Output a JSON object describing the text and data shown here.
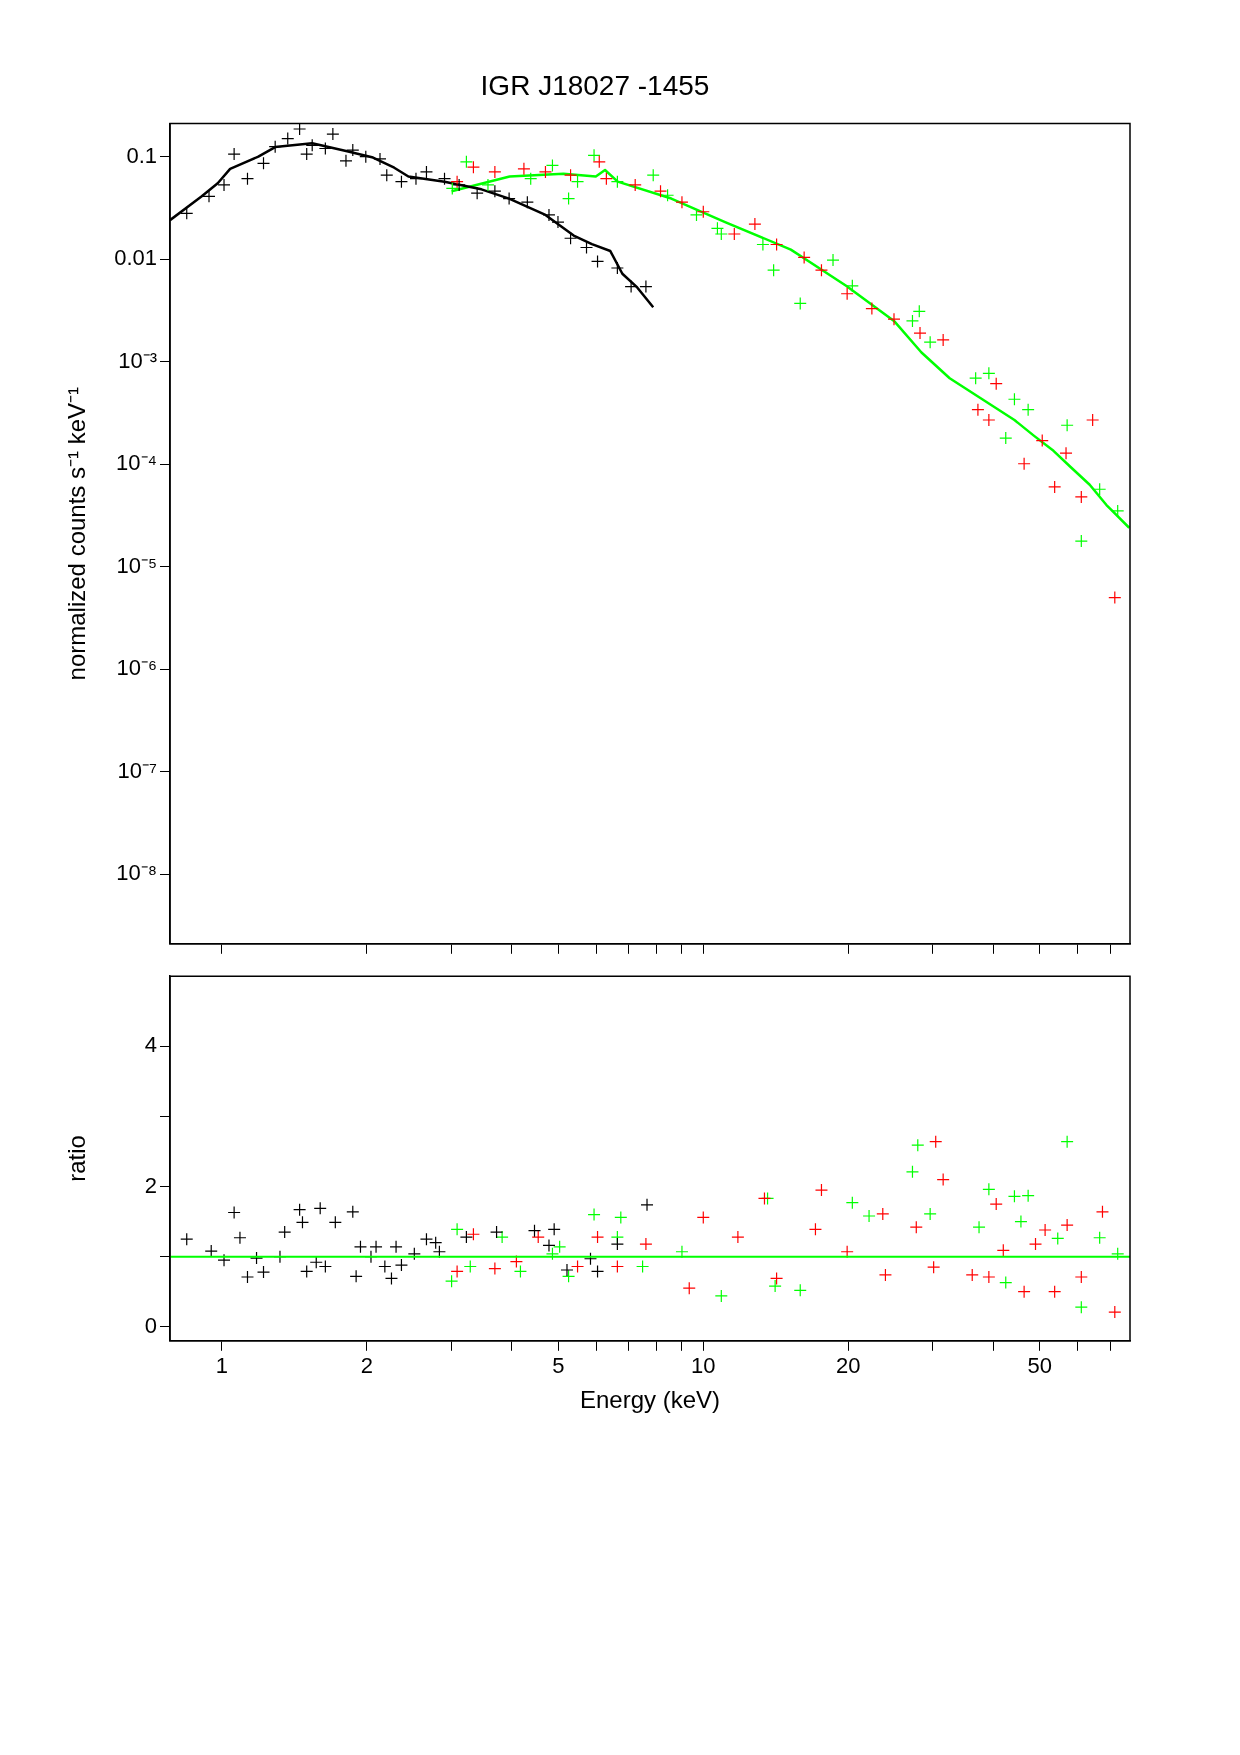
{
  "chart_data": [
    {
      "type": "scatter",
      "title": "IGR J18027 -1455",
      "ylabel": "normalized counts s⁻¹ keV⁻¹",
      "log": "xy",
      "marker": "cross",
      "tick_labels": "y",
      "xlim": [
        0.78,
        77
      ],
      "ylim": [
        2.1e-09,
        0.21
      ],
      "xticks": [
        {
          "value": 1,
          "label": null
        },
        {
          "value": 2,
          "label": null
        },
        {
          "value": 3,
          "label": null
        },
        {
          "value": 4,
          "label": null
        },
        {
          "value": 5,
          "label": null
        },
        {
          "value": 6,
          "label": null
        },
        {
          "value": 7,
          "label": null
        },
        {
          "value": 8,
          "label": null
        },
        {
          "value": 9,
          "label": null
        },
        {
          "value": 10,
          "label": null
        },
        {
          "value": 20,
          "label": null
        },
        {
          "value": 30,
          "label": null
        },
        {
          "value": 40,
          "label": null
        },
        {
          "value": 50,
          "label": null
        },
        {
          "value": 60,
          "label": null
        },
        {
          "value": 70,
          "label": null
        }
      ],
      "yticks": [
        {
          "value": 0.1,
          "label": "0.1"
        },
        {
          "value": 0.01,
          "label": "0.01"
        },
        {
          "value": 0.001,
          "label": "10⁻³"
        },
        {
          "value": 0.0001,
          "label": "10⁻⁴"
        },
        {
          "value": 1e-05,
          "label": "10⁻⁵"
        },
        {
          "value": 1e-06,
          "label": "10⁻⁶"
        },
        {
          "value": 1e-07,
          "label": "10⁻⁷"
        },
        {
          "value": 1e-08,
          "label": "10⁻⁸"
        }
      ],
      "series": [
        {
          "color": "#000000",
          "x": [
            0.845,
            0.94,
            1.01,
            1.06,
            1.13,
            1.22,
            1.29,
            1.37,
            1.45,
            1.5,
            1.54,
            1.64,
            1.7,
            1.81,
            1.87,
            1.99,
            2.13,
            2.2,
            2.36,
            2.53,
            2.66,
            2.9,
            3.11,
            3.39,
            3.69,
            3.95,
            4.31,
            4.78,
            4.99,
            5.3,
            5.72,
            6.03,
            6.63,
            7.08,
            7.6
          ],
          "values": [
            0.028,
            0.041,
            0.053,
            0.106,
            0.061,
            0.086,
            0.125,
            0.15,
            0.186,
            0.106,
            0.129,
            0.12,
            0.166,
            0.091,
            0.116,
            0.1,
            0.095,
            0.066,
            0.057,
            0.061,
            0.071,
            0.061,
            0.053,
            0.044,
            0.046,
            0.039,
            0.036,
            0.027,
            0.023,
            0.016,
            0.013,
            0.0095,
            0.0082,
            0.0054,
            0.0054
          ]
        },
        {
          "color": "#ff0000",
          "x": [
            3.08,
            3.33,
            3.69,
            4.24,
            4.7,
            5.3,
            6.08,
            6.29,
            7.22,
            8.15,
            9.03,
            10,
            11.6,
            12.8,
            14.2,
            16.2,
            17.6,
            19.9,
            22.4,
            24.9,
            28.2,
            31.5,
            37.2,
            39.2,
            40.6,
            46.4,
            50.6,
            53.7,
            56.7,
            61,
            64.4,
            71.6
          ],
          "values": [
            0.057,
            0.079,
            0.071,
            0.076,
            0.071,
            0.066,
            0.089,
            0.061,
            0.053,
            0.046,
            0.036,
            0.029,
            0.0176,
            0.022,
            0.0139,
            0.0104,
            0.0078,
            0.0046,
            0.0033,
            0.0026,
            0.0019,
            0.00163,
            0.00034,
            0.00027,
            0.00061,
            0.000101,
            0.00017,
            6e-05,
            0.000128,
            4.8e-05,
            0.00027,
            5e-06
          ]
        },
        {
          "color": "#00ff00",
          "x": [
            3.01,
            3.22,
            3.57,
            4.38,
            4.86,
            5.25,
            5.48,
            5.93,
            6.63,
            7.87,
            8.43,
            9.68,
            10.7,
            10.9,
            13.3,
            14,
            15.9,
            18.6,
            20.4,
            27.2,
            28.1,
            29.6,
            36.8,
            39.2,
            42.5,
            44.3,
            47.3,
            57,
            61,
            66.6,
            72.6
          ],
          "values": [
            0.049,
            0.089,
            0.053,
            0.061,
            0.082,
            0.039,
            0.057,
            0.103,
            0.057,
            0.066,
            0.042,
            0.027,
            0.02,
            0.0176,
            0.0139,
            0.0078,
            0.0037,
            0.0098,
            0.0055,
            0.0025,
            0.0031,
            0.00155,
            0.00069,
            0.00077,
            0.00018,
            0.00043,
            0.00034,
            0.00024,
            1.78e-05,
            5.7e-05,
            3.5e-05
          ]
        },
        {
          "type": "line",
          "marker": "none",
          "color": "#000000",
          "x": [
            0.78,
            0.908,
            0.98,
            1.04,
            1.19,
            1.29,
            1.54,
            1.82,
            2.06,
            2.28,
            2.44,
            2.9,
            3.46,
            3.95,
            4.7,
            5.38,
            5.87,
            6.41,
            6.79,
            7.29,
            7.87
          ],
          "values": [
            0.024,
            0.041,
            0.055,
            0.076,
            0.1,
            0.124,
            0.135,
            0.113,
            0.098,
            0.078,
            0.064,
            0.057,
            0.048,
            0.039,
            0.027,
            0.017,
            0.014,
            0.012,
            0.0072,
            0.0053,
            0.0034
          ]
        },
        {
          "type": "line",
          "marker": "none",
          "color": "#00ff00",
          "x": [
            3,
            3.96,
            5.12,
            5.98,
            6.25,
            6.64,
            8.58,
            11.1,
            15.2,
            19.8,
            24.9,
            28.4,
            32.5,
            37.7,
            44.3,
            48.6,
            53.4,
            57.8,
            63.5,
            68.8,
            76.7
          ],
          "values": [
            0.046,
            0.064,
            0.068,
            0.064,
            0.074,
            0.057,
            0.039,
            0.023,
            0.0124,
            0.0055,
            0.0025,
            0.00123,
            0.00069,
            0.00044,
            0.00027,
            0.00019,
            0.000135,
            9.5e-05,
            6.3e-05,
            4e-05,
            2.4e-05
          ]
        }
      ]
    },
    {
      "type": "scatter",
      "xlabel": "Energy (keV)",
      "ylabel": "ratio",
      "log": "x",
      "marker": "cross",
      "xlim": [
        0.78,
        77
      ],
      "ylim": [
        -0.2,
        5.0
      ],
      "xticks": [
        1,
        2,
        {
          "value": 3,
          "label": null
        },
        {
          "value": 4,
          "label": null
        },
        5,
        {
          "value": 6,
          "label": null
        },
        {
          "value": 7,
          "label": null
        },
        {
          "value": 8,
          "label": null
        },
        {
          "value": 9,
          "label": null
        },
        10,
        20,
        {
          "value": 30,
          "label": null
        },
        {
          "value": 40,
          "label": null
        },
        50,
        {
          "value": 60,
          "label": null
        },
        {
          "value": 70,
          "label": null
        }
      ],
      "yticks": [
        0,
        {
          "value": 1,
          "label": null
        },
        2,
        {
          "value": 3,
          "label": null
        },
        4
      ],
      "ref_lines": [
        {
          "axis": "y",
          "value": 1,
          "color": "#00ff00"
        }
      ],
      "series": [
        {
          "color": "#000000",
          "x": [
            0.845,
            0.95,
            1.01,
            1.06,
            1.09,
            1.13,
            1.18,
            1.22,
            1.32,
            1.35,
            1.45,
            1.47,
            1.5,
            1.57,
            1.6,
            1.64,
            1.72,
            1.87,
            1.9,
            1.94,
            2.04,
            2.09,
            2.18,
            2.25,
            2.3,
            2.36,
            2.51,
            2.66,
            2.78,
            2.83,
            3.22,
            3.72,
            4.46,
            4.78,
            4.9,
            5.21,
            5.83,
            6.03,
            6.63,
            7.64
          ],
          "values": [
            1.25,
            1.08,
            0.95,
            1.63,
            1.27,
            0.71,
            0.98,
            0.78,
            1.0,
            1.35,
            1.67,
            1.49,
            0.79,
            0.92,
            1.69,
            0.86,
            1.49,
            1.64,
            0.72,
            1.14,
            1.0,
            1.14,
            0.86,
            0.69,
            1.14,
            0.88,
            1.04,
            1.25,
            1.2,
            1.07,
            1.28,
            1.35,
            1.37,
            1.16,
            1.39,
            0.81,
            0.97,
            0.79,
            1.18,
            1.74
          ]
        },
        {
          "color": "#ff0000",
          "x": [
            3.08,
            3.33,
            3.69,
            4.09,
            4.54,
            5.48,
            6.03,
            6.63,
            7.6,
            9.35,
            10,
            11.8,
            13.4,
            14.2,
            17.1,
            17.6,
            19.9,
            23.6,
            23.9,
            27.7,
            30.1,
            30.4,
            31.5,
            36.2,
            39.2,
            40.6,
            42,
            46.4,
            49,
            51.3,
            53.7,
            57,
            61,
            67.5,
            71.6
          ],
          "values": [
            0.79,
            1.32,
            0.83,
            0.93,
            1.28,
            0.86,
            1.28,
            0.86,
            1.18,
            0.55,
            1.56,
            1.28,
            1.83,
            0.69,
            1.39,
            1.95,
            1.07,
            1.61,
            0.74,
            1.42,
            0.85,
            2.64,
            2.1,
            0.74,
            0.71,
            1.75,
            1.09,
            0.5,
            1.18,
            1.38,
            0.5,
            1.45,
            0.71,
            1.64,
            0.21
          ]
        },
        {
          "color": "#00ff00",
          "x": [
            3.0,
            3.08,
            3.28,
            3.82,
            4.17,
            4.86,
            5.03,
            5.25,
            5.93,
            6.63,
            6.74,
            7.48,
            9.03,
            10.9,
            13.6,
            14.1,
            15.9,
            20.4,
            22.1,
            27.2,
            27.9,
            29.6,
            37.4,
            39.2,
            42.5,
            44.3,
            45.7,
            47.3,
            54.5,
            57,
            61,
            66.6,
            72.6
          ],
          "values": [
            0.65,
            1.39,
            0.86,
            1.28,
            0.79,
            1.04,
            1.14,
            0.72,
            1.6,
            1.28,
            1.56,
            0.86,
            1.07,
            0.44,
            1.83,
            0.58,
            0.52,
            1.77,
            1.58,
            2.21,
            2.59,
            1.61,
            1.42,
            1.96,
            0.63,
            1.86,
            1.5,
            1.87,
            1.26,
            2.64,
            0.28,
            1.27,
            1.04
          ]
        }
      ]
    }
  ]
}
